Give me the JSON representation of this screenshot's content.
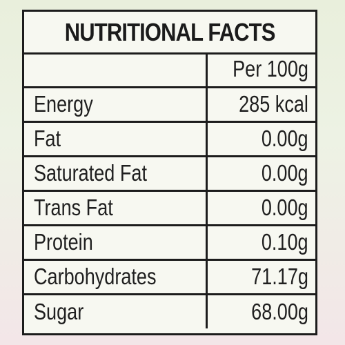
{
  "label": {
    "title": "NUTRITIONAL FACTS",
    "header": {
      "nutrient": "",
      "amount": "Per 100g"
    },
    "rows": [
      {
        "nutrient": "Energy",
        "amount": "285 kcal"
      },
      {
        "nutrient": "Fat",
        "amount": "0.00g"
      },
      {
        "nutrient": "Saturated Fat",
        "amount": "0.00g"
      },
      {
        "nutrient": "Trans Fat",
        "amount": "0.00g"
      },
      {
        "nutrient": "Protein",
        "amount": "0.10g"
      },
      {
        "nutrient": "Carbohydrates",
        "amount": "71.17g"
      },
      {
        "nutrient": "Sugar",
        "amount": "68.00g"
      }
    ]
  }
}
